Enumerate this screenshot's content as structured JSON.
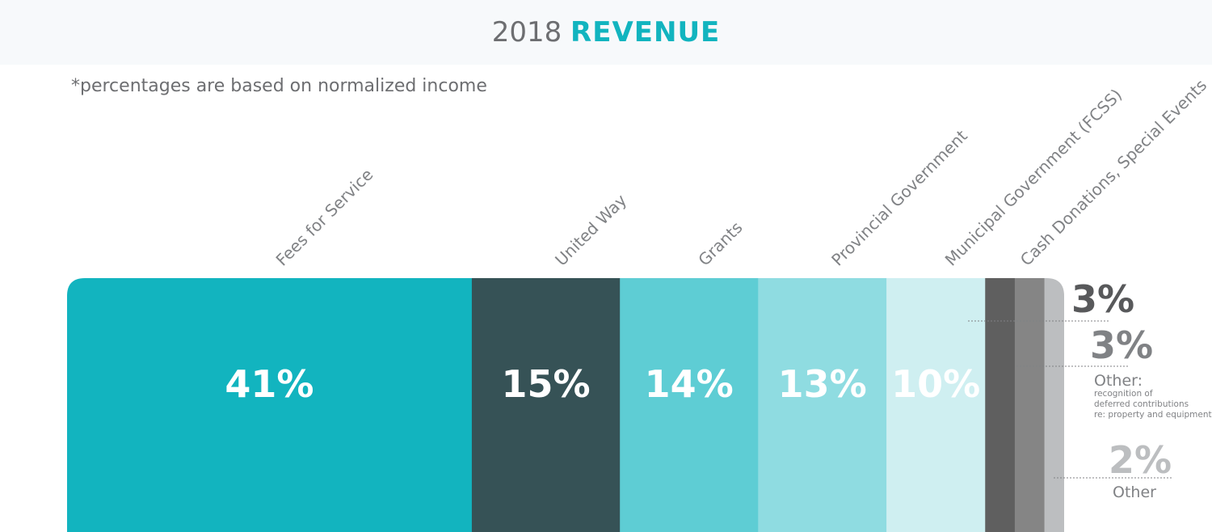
{
  "header": {
    "title_year": "2018",
    "title_word": "REVENUE"
  },
  "note": "*percentages are based on normalized income",
  "colors": {
    "teal": "#12b4bf",
    "dark_slate": "#365256",
    "mid_teal": "#5ecdd4",
    "light_teal": "#8fdce1",
    "pale_teal": "#cfeff1",
    "dark_gray": "#5f5f5f",
    "mid_gray": "#858585",
    "light_gray": "#bcbec0"
  },
  "chart_data": {
    "type": "bar",
    "orientation": "stacked-horizontal",
    "title": "2018 REVENUE",
    "segments": [
      {
        "category": "Fees for Service",
        "value": 41,
        "label": "41%",
        "color": "#12b4bf"
      },
      {
        "category": "United Way",
        "value": 15,
        "label": "15%",
        "color": "#365256"
      },
      {
        "category": "Grants",
        "value": 14,
        "label": "14%",
        "color": "#5ecdd4"
      },
      {
        "category": "Provincial Government",
        "value": 13,
        "label": "13%",
        "color": "#8fdce1"
      },
      {
        "category": "Municipal Government (FCSS)",
        "value": 10,
        "label": "10%",
        "color": "#cfeff1"
      },
      {
        "category": "Cash Donations, Special Events",
        "value": 3,
        "label": "3%",
        "color": "#5f5f5f"
      },
      {
        "category": "Other:",
        "detail": [
          "recognition of",
          "deferred contributions",
          "re: property and equipment"
        ],
        "value": 3,
        "label": "3%",
        "color": "#858585"
      },
      {
        "category": "Other",
        "value": 2,
        "label": "2%",
        "color": "#bcbec0"
      }
    ]
  }
}
